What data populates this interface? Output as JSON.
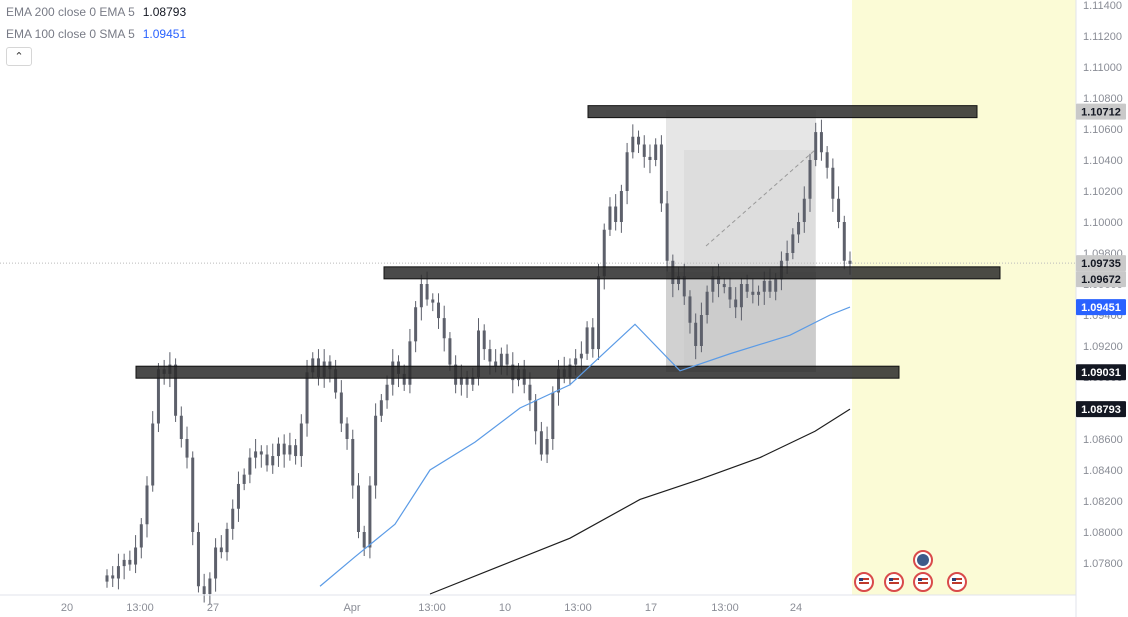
{
  "legend": {
    "ema200": {
      "label": "EMA 200 close 0 EMA 5",
      "value": "1.08793",
      "color": "#131722"
    },
    "ema100": {
      "label": "EMA 100 close 0 SMA 5",
      "value": "1.09451",
      "color": "#2962ff"
    }
  },
  "collapse_icon": "chevron-up-icon",
  "collapse_glyph": "⌃",
  "colors": {
    "candle": "#5d606b",
    "ema100": "#5b9be6",
    "ema200": "#1e1e1e",
    "zone": "#2a2a2a",
    "future_highlight": "#fbfbd6",
    "box_outer": "#e6e6e6",
    "box_inner": "#b8b8b8",
    "calendar_icon": "#d94a4a"
  },
  "event_icons": [
    "us-flag-icon",
    "us-flag-icon",
    "us-flag-icon",
    "globe-icon",
    "us-flag-icon"
  ],
  "chart_data": {
    "type": "candlestick",
    "ylim": [
      1.076,
      1.115
    ],
    "y_ticks": [
      "1.07800",
      "1.08000",
      "1.08200",
      "1.08400",
      "1.08600",
      "1.08800",
      "1.09000",
      "1.09200",
      "1.09400",
      "1.09600",
      "1.09800",
      "1.10000",
      "1.10200",
      "1.10400",
      "1.10600",
      "1.10800",
      "1.11000",
      "1.11200",
      "1.11400"
    ],
    "x_ticks": [
      "20",
      "13:00",
      "27",
      "Apr",
      "13:00",
      "10",
      "13:00",
      "17",
      "13:00",
      "24"
    ],
    "price_labels": [
      {
        "text": "1.10712",
        "value": 1.10712,
        "style": "gray"
      },
      {
        "text": "1.09735",
        "value": 1.09735,
        "style": "gray"
      },
      {
        "text": "1.09672",
        "value": 1.09672,
        "style": "gray"
      },
      {
        "text": "1.09451",
        "value": 1.09451,
        "style": "blue"
      },
      {
        "text": "1.09031",
        "value": 1.09031,
        "style": "black"
      },
      {
        "text": "1.08793",
        "value": 1.08793,
        "style": "black"
      }
    ],
    "last_price": 1.09735,
    "zones": [
      {
        "price": 1.10712
      },
      {
        "price": 1.09672
      },
      {
        "price": 1.09031
      }
    ],
    "candles_close": [
      1.0772,
      1.077,
      1.0778,
      1.0782,
      1.0779,
      1.079,
      1.0805,
      1.083,
      1.087,
      1.0905,
      1.0902,
      1.0908,
      1.0875,
      1.086,
      1.0848,
      1.08,
      1.0765,
      1.076,
      1.077,
      1.079,
      1.0787,
      1.0802,
      1.0815,
      1.0831,
      1.0837,
      1.0848,
      1.0852,
      1.085,
      1.0843,
      1.0849,
      1.0857,
      1.085,
      1.0856,
      1.0849,
      1.087,
      1.0903,
      1.0912,
      1.09,
      1.091,
      1.0905,
      1.089,
      1.087,
      1.086,
      1.083,
      1.08,
      1.079,
      1.083,
      1.0875,
      1.0885,
      1.0895,
      1.091,
      1.0902,
      1.0895,
      1.0923,
      1.0945,
      1.096,
      1.095,
      1.0948,
      1.0938,
      1.0925,
      1.0908,
      1.0895,
      1.09,
      1.0895,
      1.09,
      1.093,
      1.0918,
      1.091,
      1.0907,
      1.0915,
      1.0908,
      1.0898,
      1.0905,
      1.0895,
      1.0885,
      1.0865,
      1.085,
      1.086,
      1.089,
      1.0905,
      1.09,
      1.0908,
      1.0912,
      1.0915,
      1.0932,
      1.0918,
      1.0965,
      1.0995,
      1.101,
      1.1,
      1.102,
      1.1045,
      1.1055,
      1.105,
      1.1042,
      1.104,
      1.105,
      1.1012,
      1.0975,
      1.096,
      1.0965,
      1.0952,
      1.0935,
      1.092,
      1.094,
      1.0955,
      1.0965,
      1.096,
      1.0958,
      1.095,
      1.0945,
      1.096,
      1.0955,
      1.0953,
      1.0955,
      1.0962,
      1.0955,
      1.0963,
      1.0975,
      1.098,
      1.0992,
      1.1,
      1.1015,
      1.104,
      1.1058,
      1.1045,
      1.1035,
      1.1015,
      1.1,
      1.0975,
      1.0973
    ],
    "ema100": [
      [
        320,
        1.0765
      ],
      [
        355,
        1.0784
      ],
      [
        395,
        1.0805
      ],
      [
        430,
        1.084
      ],
      [
        475,
        1.0858
      ],
      [
        520,
        1.088
      ],
      [
        570,
        1.0895
      ],
      [
        600,
        1.0913
      ],
      [
        635,
        1.0934
      ],
      [
        680,
        1.0904
      ],
      [
        730,
        1.0915
      ],
      [
        790,
        1.0927
      ],
      [
        830,
        1.094
      ],
      [
        850,
        1.09451
      ]
    ],
    "ema200": [
      [
        430,
        1.076
      ],
      [
        500,
        1.0778
      ],
      [
        570,
        1.0796
      ],
      [
        640,
        1.0821
      ],
      [
        700,
        1.0834
      ],
      [
        760,
        1.0848
      ],
      [
        815,
        1.0865
      ],
      [
        850,
        1.08793
      ]
    ]
  }
}
